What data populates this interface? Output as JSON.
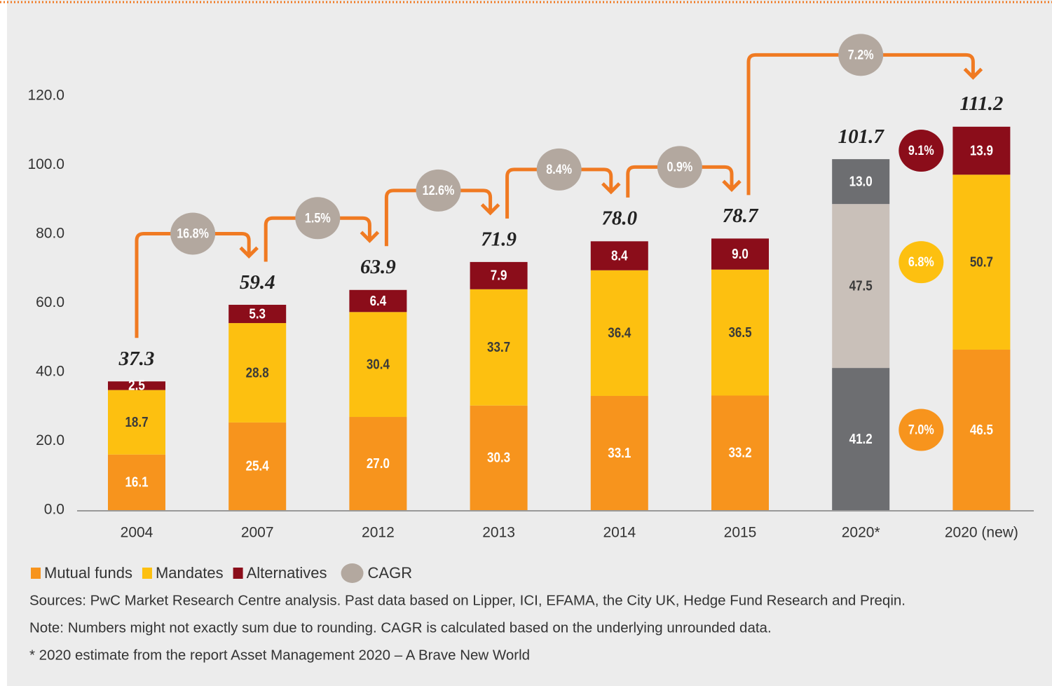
{
  "chart_data": {
    "type": "stacked-bar",
    "categories": [
      "2004",
      "2007",
      "2012",
      "2013",
      "2014",
      "2015",
      "2020*",
      "2020 (new)"
    ],
    "series": [
      {
        "name": "Mutual funds",
        "color": "#f7941d",
        "colors": [
          "#f7941d",
          "#f7941d",
          "#f7941d",
          "#f7941d",
          "#f7941d",
          "#f7941d",
          "#6d6e71",
          "#f7941d"
        ],
        "values": [
          16.1,
          25.4,
          27.0,
          30.3,
          33.1,
          33.2,
          41.2,
          46.5
        ],
        "value_labels": [
          "16.1",
          "25.4",
          "27.0",
          "30.3",
          "33.1",
          "33.2",
          "41.2",
          "46.5"
        ],
        "cagr": {
          "value": 7.0,
          "label": "7.0%"
        }
      },
      {
        "name": "Mandates",
        "color": "#fdc010",
        "colors": [
          "#fdc010",
          "#fdc010",
          "#fdc010",
          "#fdc010",
          "#fdc010",
          "#fdc010",
          "#c9c0b9",
          "#fdc010"
        ],
        "values": [
          18.7,
          28.8,
          30.4,
          33.7,
          36.4,
          36.5,
          47.5,
          50.7
        ],
        "value_labels": [
          "18.7",
          "28.8",
          "30.4",
          "33.7",
          "36.4",
          "36.5",
          "47.5",
          "50.7"
        ],
        "cagr": {
          "value": 6.8,
          "label": "6.8%"
        }
      },
      {
        "name": "Alternatives",
        "color": "#8b0d1a",
        "colors": [
          "#8b0d1a",
          "#8b0d1a",
          "#8b0d1a",
          "#8b0d1a",
          "#8b0d1a",
          "#8b0d1a",
          "#6d6e71",
          "#8b0d1a"
        ],
        "values": [
          2.5,
          5.3,
          6.4,
          7.9,
          8.4,
          9.0,
          13.0,
          13.9
        ],
        "value_labels": [
          "2.5",
          "5.3",
          "6.4",
          "7.9",
          "8.4",
          "9.0",
          "13.0",
          "13.9"
        ],
        "cagr": {
          "value": 9.1,
          "label": "9.1%"
        }
      }
    ],
    "totals": [
      37.3,
      59.4,
      63.9,
      71.9,
      78.0,
      78.7,
      101.7,
      111.2
    ],
    "total_labels": [
      "37.3",
      "59.4",
      "63.9",
      "71.9",
      "78.0",
      "78.7",
      "101.7",
      "111.2"
    ],
    "cagr": [
      {
        "from": 0,
        "to": 1,
        "value": 16.8,
        "label": "16.8%"
      },
      {
        "from": 1,
        "to": 2,
        "value": 1.5,
        "label": "1.5%"
      },
      {
        "from": 2,
        "to": 3,
        "value": 12.6,
        "label": "12.6%"
      },
      {
        "from": 3,
        "to": 4,
        "value": 8.4,
        "label": "8.4%"
      },
      {
        "from": 4,
        "to": 5,
        "value": 0.9,
        "label": "0.9%"
      },
      {
        "from": 5,
        "to": 7,
        "value": 7.2,
        "label": "7.2%"
      }
    ],
    "cagr_legend": "CAGR",
    "ylim": [
      0,
      120
    ],
    "yticks": [
      {
        "value": 0,
        "label": "0.0"
      },
      {
        "value": 20,
        "label": "20.0"
      },
      {
        "value": 40,
        "label": "40.0"
      },
      {
        "value": 60,
        "label": "60.0"
      },
      {
        "value": 80,
        "label": "80.0"
      },
      {
        "value": 100,
        "label": "100.0"
      },
      {
        "value": 120,
        "label": "120.0"
      }
    ],
    "notes": [
      "Sources: PwC Market Research Centre analysis. Past data  based on Lipper, ICI, EFAMA, the City UK, Hedge Fund Research and Preqin.",
      "Note: Numbers might not exactly sum due to rounding. CAGR is calculated based on the underlying unrounded data.",
      "* 2020 estimate from the report Asset Management 2020 – A Brave New World"
    ]
  }
}
